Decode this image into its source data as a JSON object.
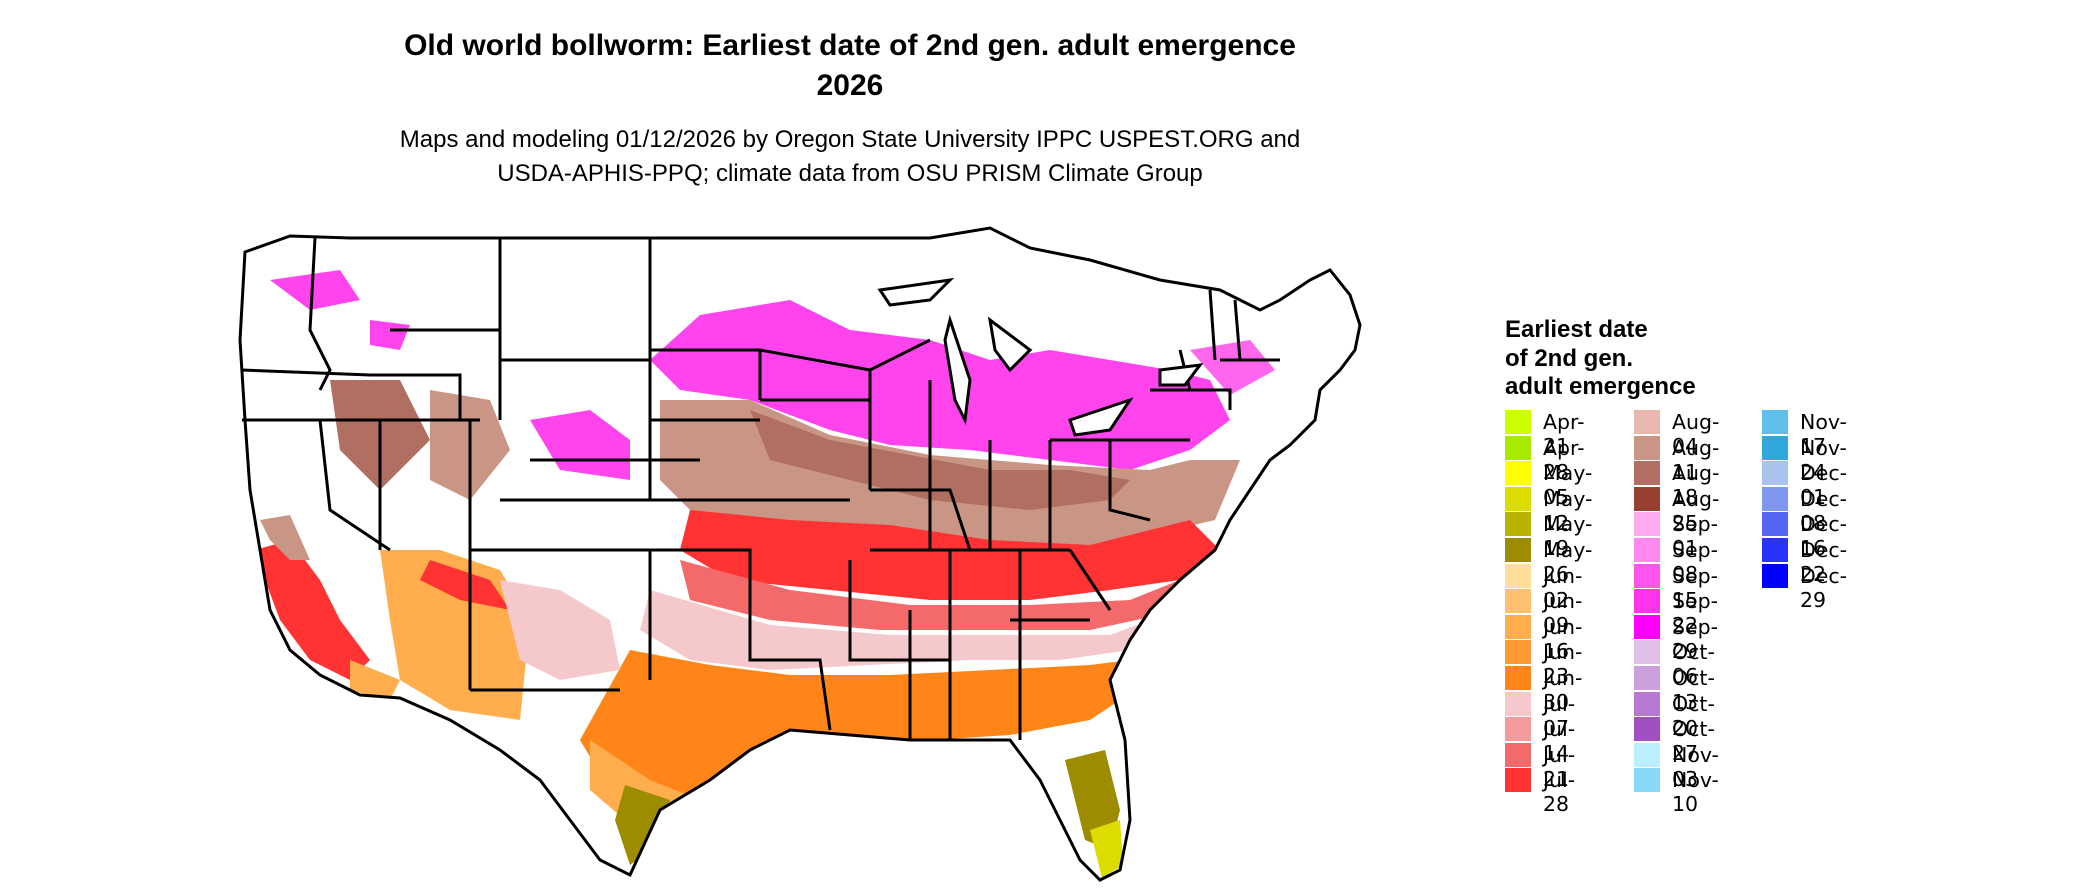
{
  "title": {
    "line1": "Old world bollworm: Earliest date of 2nd gen. adult emergence",
    "line2": "2026"
  },
  "subtitle": {
    "line1": "Maps and modeling 01/12/2026 by Oregon State University IPPC USPEST.ORG and",
    "line2": "USDA-APHIS-PPQ; climate data from OSU PRISM Climate Group"
  },
  "legend": {
    "title_line1": "Earliest date",
    "title_line2": "of 2nd gen.",
    "title_line3": "adult emergence",
    "items": [
      {
        "label": "Apr-21",
        "color": "#ccff00"
      },
      {
        "label": "Apr-28",
        "color": "#a6ea00"
      },
      {
        "label": "May-05",
        "color": "#ffff00"
      },
      {
        "label": "May-12",
        "color": "#dcdc00"
      },
      {
        "label": "May-19",
        "color": "#b9b300"
      },
      {
        "label": "May-26",
        "color": "#9e8c00"
      },
      {
        "label": "Jun-02",
        "color": "#ffdd9a"
      },
      {
        "label": "Jun-09",
        "color": "#ffc16e"
      },
      {
        "label": "Jun-16",
        "color": "#ffad4d"
      },
      {
        "label": "Jun-23",
        "color": "#ff9a33"
      },
      {
        "label": "Jun-30",
        "color": "#ff8518"
      },
      {
        "label": "Jul-07",
        "color": "#f5c9cc"
      },
      {
        "label": "Jul-14",
        "color": "#f59a9c"
      },
      {
        "label": "Jul-21",
        "color": "#f46a6b"
      },
      {
        "label": "Jul-28",
        "color": "#ff3333"
      },
      {
        "label": "Aug-04",
        "color": "#e8b8b0"
      },
      {
        "label": "Aug-11",
        "color": "#c99585"
      },
      {
        "label": "Aug-18",
        "color": "#b06f60"
      },
      {
        "label": "Aug-25",
        "color": "#984030"
      },
      {
        "label": "Sep-01",
        "color": "#ffaaee"
      },
      {
        "label": "Sep-08",
        "color": "#ff88ee"
      },
      {
        "label": "Sep-15",
        "color": "#ff55ee"
      },
      {
        "label": "Sep-22",
        "color": "#ff33ee"
      },
      {
        "label": "Sep-29",
        "color": "#ff00ff"
      },
      {
        "label": "Oct-06",
        "color": "#e0c0e8"
      },
      {
        "label": "Oct-13",
        "color": "#cca0dc"
      },
      {
        "label": "Oct-20",
        "color": "#b87ad0"
      },
      {
        "label": "Oct-27",
        "color": "#a050c0"
      },
      {
        "label": "Nov-03",
        "color": "#bbeeff"
      },
      {
        "label": "Nov-10",
        "color": "#88d8f8"
      },
      {
        "label": "Nov-17",
        "color": "#5ec0ea"
      },
      {
        "label": "Nov-24",
        "color": "#30a8dc"
      },
      {
        "label": "Dec-01",
        "color": "#a8c4ec"
      },
      {
        "label": "Dec-08",
        "color": "#7f98ee"
      },
      {
        "label": "Dec-16",
        "color": "#5566f4"
      },
      {
        "label": "Dec-22",
        "color": "#2a33fa"
      },
      {
        "label": "Dec-29",
        "color": "#0000ff"
      }
    ]
  }
}
